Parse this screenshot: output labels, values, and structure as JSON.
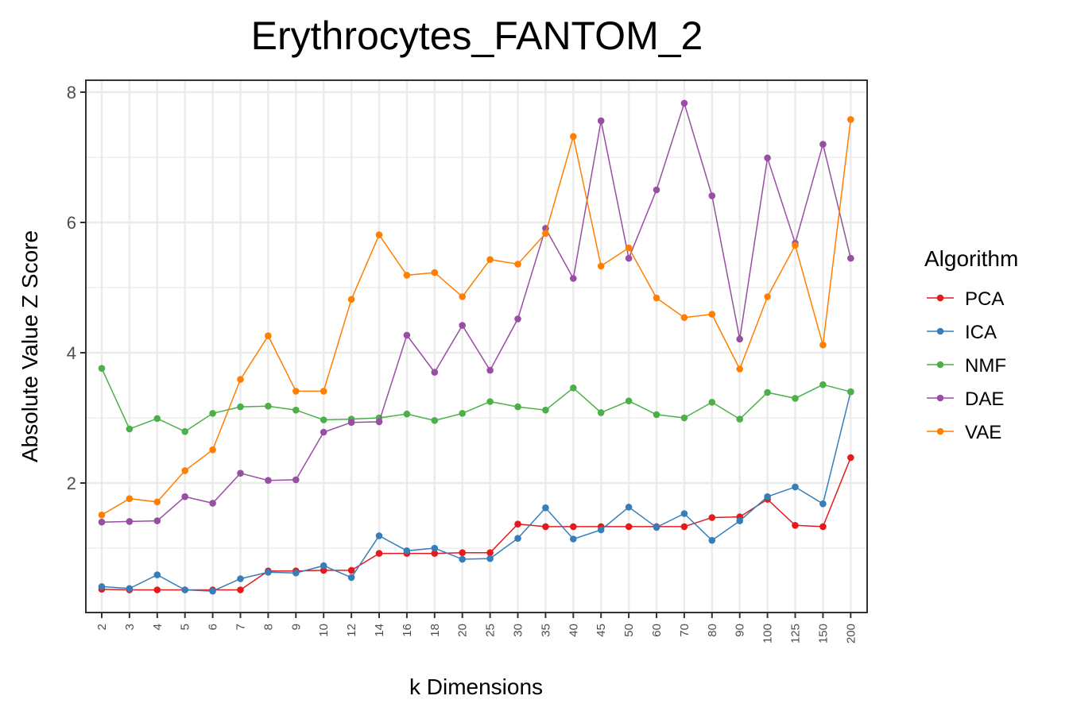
{
  "chart_data": {
    "type": "line",
    "title": "Erythrocytes_FANTOM_2",
    "xlabel": "k Dimensions",
    "ylabel": "Absolute Value Z Score",
    "categories": [
      "2",
      "3",
      "4",
      "5",
      "6",
      "7",
      "8",
      "9",
      "10",
      "12",
      "14",
      "16",
      "18",
      "20",
      "25",
      "30",
      "35",
      "40",
      "45",
      "50",
      "60",
      "70",
      "80",
      "90",
      "100",
      "125",
      "150",
      "200"
    ],
    "ylim": [
      0,
      8.2
    ],
    "yticks": [
      2,
      4,
      6,
      8
    ],
    "grid": true,
    "legend": {
      "title": "Algorithm",
      "position": "right"
    },
    "series": [
      {
        "name": "PCA",
        "color": "#e41a1c",
        "values": [
          0.37,
          0.36,
          0.36,
          0.36,
          0.36,
          0.36,
          0.65,
          0.65,
          0.66,
          0.66,
          0.92,
          0.92,
          0.92,
          0.93,
          0.93,
          1.37,
          1.33,
          1.33,
          1.33,
          1.33,
          1.33,
          1.33,
          1.47,
          1.48,
          1.75,
          1.35,
          1.33,
          2.39
        ]
      },
      {
        "name": "ICA",
        "color": "#377eb8",
        "values": [
          0.41,
          0.38,
          0.59,
          0.36,
          0.34,
          0.53,
          0.63,
          0.62,
          0.73,
          0.55,
          1.19,
          0.96,
          1.0,
          0.83,
          0.84,
          1.15,
          1.62,
          1.14,
          1.28,
          1.63,
          1.32,
          1.53,
          1.12,
          1.42,
          1.79,
          1.94,
          1.68,
          3.4
        ]
      },
      {
        "name": "NMF",
        "color": "#4daf4a",
        "values": [
          3.76,
          2.83,
          2.99,
          2.79,
          3.07,
          3.17,
          3.18,
          3.12,
          2.97,
          2.98,
          3.0,
          3.06,
          2.96,
          3.07,
          3.25,
          3.17,
          3.12,
          3.46,
          3.08,
          3.26,
          3.05,
          3.0,
          3.24,
          2.98,
          3.39,
          3.3,
          3.51,
          3.4
        ]
      },
      {
        "name": "DAE",
        "color": "#984ea3",
        "values": [
          1.4,
          1.41,
          1.42,
          1.79,
          1.69,
          2.15,
          2.04,
          2.05,
          2.78,
          2.93,
          2.94,
          4.27,
          3.7,
          4.42,
          3.73,
          4.52,
          5.91,
          5.14,
          7.56,
          5.45,
          6.5,
          7.83,
          6.41,
          4.21,
          6.99,
          5.68,
          7.2,
          5.45
        ]
      },
      {
        "name": "VAE",
        "color": "#ff7f00",
        "values": [
          1.51,
          1.76,
          1.71,
          2.19,
          2.51,
          3.59,
          4.26,
          3.41,
          3.41,
          4.82,
          5.81,
          5.19,
          5.23,
          4.86,
          5.43,
          5.36,
          5.83,
          7.32,
          5.33,
          5.61,
          4.84,
          4.54,
          4.59,
          3.75,
          4.86,
          5.65,
          4.12,
          7.58
        ]
      }
    ]
  }
}
